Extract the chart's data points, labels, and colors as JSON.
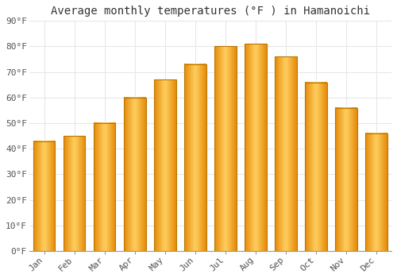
{
  "title": "Average monthly temperatures (°F ) in Hamanoichi",
  "months": [
    "Jan",
    "Feb",
    "Mar",
    "Apr",
    "May",
    "Jun",
    "Jul",
    "Aug",
    "Sep",
    "Oct",
    "Nov",
    "Dec"
  ],
  "values": [
    43,
    45,
    50,
    60,
    67,
    73,
    80,
    81,
    76,
    66,
    56,
    46
  ],
  "bar_color_main": "#FFA500",
  "bar_color_light": "#FFD966",
  "bar_edge_color": "#C89020",
  "ylim": [
    0,
    90
  ],
  "yticks": [
    0,
    10,
    20,
    30,
    40,
    50,
    60,
    70,
    80,
    90
  ],
  "ytick_labels": [
    "0°F",
    "10°F",
    "20°F",
    "30°F",
    "40°F",
    "50°F",
    "60°F",
    "70°F",
    "80°F",
    "90°F"
  ],
  "background_color": "#FFFFFF",
  "plot_bg_color": "#FFFFFF",
  "grid_color": "#E8E8E8",
  "title_fontsize": 10,
  "tick_fontsize": 8,
  "bar_width": 0.72
}
